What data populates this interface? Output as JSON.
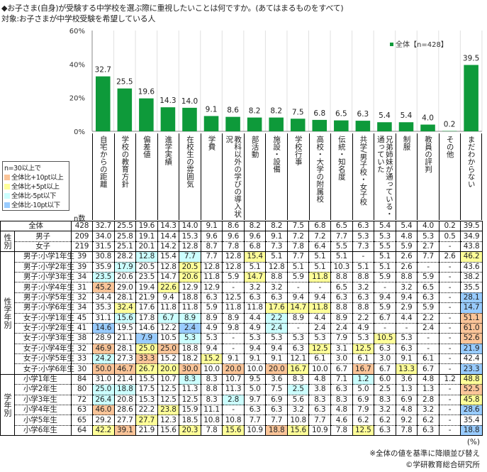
{
  "title": "◆お子さま(自身)が受験する中学校を選ぶ際に重視したいことは何ですか。(あてはまるものをすべて)",
  "subtitle": "対象:お子さまが中学校受験を希望している人",
  "colors": {
    "bar": "#0e9a3a",
    "plus10": "#fbc599",
    "plus5": "#ffff99",
    "minus5": "#ccffff",
    "minus10": "#99ccff"
  },
  "highlight_legend": {
    "title": "n=30以上で",
    "items": [
      {
        "code": "o",
        "label": "全体比+10pt以上"
      },
      {
        "code": "y",
        "label": "全体比+5pt以上"
      },
      {
        "code": "c",
        "label": "全体比-5pt以下"
      },
      {
        "code": "b",
        "label": "全体比-10pt以下"
      }
    ]
  },
  "n_label": "n数",
  "chart_data": {
    "type": "bar",
    "legend": "全体【n=428】",
    "legend_position": "top-right",
    "ylim": [
      0,
      60
    ],
    "yticks": [
      "0%",
      "20%",
      "40%",
      "60%"
    ],
    "categories": [
      "自宅からの距離",
      "学校の教育方針",
      "偏差値",
      "進学実績",
      "在校生の雰囲気",
      "学費",
      "教科以外の学びの導入状況",
      "部活動",
      "施設・設備",
      "学校行事",
      "高校・大学の附属校",
      "伝統・知名度",
      "共学/男子校・女子校",
      "兄弟姉妹が通っている・通っていた",
      "制服",
      "教員の評判",
      "その他",
      "まだわからない"
    ],
    "values": [
      32.7,
      25.5,
      19.6,
      14.3,
      14.0,
      9.1,
      8.6,
      8.2,
      8.2,
      7.5,
      6.8,
      6.5,
      6.3,
      5.4,
      5.4,
      4.0,
      0.2,
      39.5
    ],
    "value_labels": [
      "32.7",
      "25.5",
      "19.6",
      "14.3",
      "14.0",
      "9.1",
      "8.6",
      "8.2",
      "8.2",
      "7.5",
      "6.8",
      "6.5",
      "6.3",
      "5.4",
      "5.4",
      "4.0",
      "0.2",
      "39.5"
    ]
  },
  "table": {
    "groups": [
      {
        "label": "",
        "rows": [
          {
            "label": "全体",
            "n": "428",
            "v": [
              "32.7",
              "25.5",
              "19.6",
              "14.3",
              "14.0",
              "9.1",
              "8.6",
              "8.2",
              "8.2",
              "7.5",
              "6.8",
              "6.5",
              "6.3",
              "5.4",
              "5.4",
              "4.0",
              "0.2",
              "39.5"
            ],
            "h": ".................."
          }
        ]
      },
      {
        "label": "性別",
        "rows": [
          {
            "label": "男子",
            "n": "209",
            "v": [
              "34.0",
              "25.8",
              "19.1",
              "14.4",
              "15.3",
              "9.6",
              "9.6",
              "9.6",
              "9.1",
              "7.2",
              "7.2",
              "7.7",
              "5.3",
              "5.3",
              "4.8",
              "5.3",
              "0.5",
              "34.9"
            ],
            "h": ".................."
          },
          {
            "label": "女子",
            "n": "219",
            "v": [
              "31.5",
              "25.1",
              "20.1",
              "14.2",
              "12.8",
              "8.7",
              "7.8",
              "6.8",
              "7.3",
              "7.8",
              "6.4",
              "5.5",
              "7.3",
              "5.5",
              "5.9",
              "2.7",
              "-",
              "43.8"
            ],
            "h": ".................."
          }
        ]
      },
      {
        "label": "性学年別",
        "rows": [
          {
            "label": "男子:小学1年生",
            "n": "39",
            "v": [
              "30.8",
              "28.2",
              "12.8",
              "15.4",
              "7.7",
              "7.7",
              "12.8",
              "15.4",
              "5.1",
              "7.7",
              "5.1",
              "5.1",
              "-",
              "5.1",
              "2.6",
              "7.7",
              "2.6",
              "46.2"
            ],
            "h": "..c.c..y.........y"
          },
          {
            "label": "男子:小学2年生",
            "n": "39",
            "v": [
              "35.9",
              "17.9",
              "20.5",
              "12.8",
              "20.5",
              "12.8",
              "12.8",
              "5.1",
              "12.8",
              "5.1",
              "5.1",
              "10.3",
              "5.1",
              "5.1",
              "2.6",
              "-",
              "-",
              "43.6"
            ],
            "h": ".c..y............."
          },
          {
            "label": "男子:小学3年生",
            "n": "34",
            "v": [
              "23.5",
              "20.6",
              "23.5",
              "14.7",
              "20.6",
              "11.8",
              "5.9",
              "14.7",
              "8.8",
              "5.9",
              "11.8",
              "8.8",
              "8.8",
              "5.9",
              "8.8",
              "5.9",
              "-",
              "38.2"
            ],
            "h": "c...y..y..y......."
          },
          {
            "label": "男子:小学4年生",
            "n": "31",
            "v": [
              "45.2",
              "29.0",
              "19.4",
              "22.6",
              "12.9",
              "12.9",
              "-",
              "3.2",
              "3.2",
              "-",
              "-",
              "6.5",
              "3.2",
              "-",
              "3.2",
              "6.5",
              "-",
              "35.5"
            ],
            "h": "o..y.............."
          },
          {
            "label": "男子:小学5年生",
            "n": "32",
            "v": [
              "34.4",
              "28.1",
              "21.9",
              "9.4",
              "18.8",
              "6.3",
              "12.5",
              "6.3",
              "6.3",
              "9.4",
              "9.4",
              "6.3",
              "6.3",
              "9.4",
              "9.4",
              "6.3",
              "-",
              "28.1"
            ],
            "h": ".................b"
          },
          {
            "label": "男子:小学6年生",
            "n": "34",
            "v": [
              "35.3",
              "32.4",
              "17.6",
              "11.8",
              "11.8",
              "5.9",
              "11.8",
              "11.8",
              "17.6",
              "14.7",
              "11.8",
              "8.8",
              "8.8",
              "5.9",
              "2.9",
              "5.9",
              "-",
              "14.7"
            ],
            "h": ".y......yyy......b"
          },
          {
            "label": "女子:小学1年生",
            "n": "45",
            "v": [
              "31.1",
              "15.6",
              "17.8",
              "6.7",
              "8.9",
              "8.9",
              "8.9",
              "4.4",
              "2.2",
              "8.9",
              "4.4",
              "8.9",
              "2.2",
              "6.7",
              "4.4",
              "2.2",
              "-",
              "51.1"
            ],
            "h": ".c.cc...c........o"
          },
          {
            "label": "女子:小学2年生",
            "n": "41",
            "v": [
              "14.6",
              "19.5",
              "14.6",
              "12.2",
              "2.4",
              "4.9",
              "9.8",
              "4.9",
              "2.4",
              "-",
              "2.4",
              "2.4",
              "4.9",
              "-",
              "-",
              "2.4",
              "-",
              "61.0"
            ],
            "h": "b...b...c........o"
          },
          {
            "label": "女子:小学3年生",
            "n": "38",
            "v": [
              "28.9",
              "21.1",
              "7.9",
              "10.5",
              "5.3",
              "5.3",
              "-",
              "5.3",
              "5.3",
              "5.3",
              "5.3",
              "7.9",
              "5.3",
              "10.5",
              "5.3",
              "-",
              "-",
              "52.6"
            ],
            "h": "..b.c........y...o"
          },
          {
            "label": "女子:小学4年生",
            "n": "32",
            "v": [
              "46.9",
              "28.1",
              "25.0",
              "25.0",
              "18.8",
              "9.4",
              "-",
              "9.4",
              "9.4",
              "6.3",
              "12.5",
              "3.1",
              "12.5",
              "6.3",
              "6.3",
              "-",
              "-",
              "21.9"
            ],
            "h": "o.yo......y.y....b"
          },
          {
            "label": "女子:小学5年生",
            "n": "33",
            "v": [
              "24.2",
              "27.3",
              "33.3",
              "15.2",
              "18.2",
              "15.2",
              "9.1",
              "9.1",
              "9.1",
              "12.1",
              "6.1",
              "3.0",
              "6.1",
              "3.0",
              "9.1",
              "6.1",
              "-",
              "42.4"
            ],
            "h": "c.o..y............"
          },
          {
            "label": "女子:小学6年生",
            "n": "30",
            "v": [
              "50.0",
              "46.7",
              "26.7",
              "20.0",
              "30.0",
              "10.0",
              "20.0",
              "10.0",
              "20.0",
              "16.7",
              "10.0",
              "6.7",
              "16.7",
              "6.7",
              "13.3",
              "6.7",
              "-",
              "23.3"
            ],
            "h": "ooyyo.o.oy..o.y..b"
          }
        ]
      },
      {
        "label": "学年別",
        "rows": [
          {
            "label": "小学1年生",
            "n": "84",
            "v": [
              "31.0",
              "21.4",
              "15.5",
              "10.7",
              "8.3",
              "8.3",
              "10.7",
              "9.5",
              "3.6",
              "8.3",
              "4.8",
              "7.1",
              "1.2",
              "6.0",
              "3.6",
              "4.8",
              "1.2",
              "48.8"
            ],
            "h": "....c.......c....y"
          },
          {
            "label": "小学2年生",
            "n": "80",
            "v": [
              "25.0",
              "18.8",
              "17.5",
              "12.5",
              "11.3",
              "8.8",
              "11.3",
              "5.0",
              "7.5",
              "2.5",
              "3.8",
              "6.3",
              "5.0",
              "2.5",
              "1.3",
              "1.3",
              "-",
              "52.5"
            ],
            "h": "cc.......c.......o"
          },
          {
            "label": "小学3年生",
            "n": "72",
            "v": [
              "26.4",
              "20.8",
              "15.3",
              "12.5",
              "12.5",
              "8.3",
              "2.8",
              "9.7",
              "6.9",
              "5.6",
              "8.3",
              "8.3",
              "6.9",
              "8.3",
              "6.9",
              "2.8",
              "-",
              "45.8"
            ],
            "h": "c.....c..........y"
          },
          {
            "label": "小学4年生",
            "n": "63",
            "v": [
              "46.0",
              "28.6",
              "22.2",
              "23.8",
              "15.9",
              "11.1",
              "-",
              "6.3",
              "6.3",
              "3.2",
              "6.3",
              "4.8",
              "7.9",
              "3.2",
              "4.8",
              "3.2",
              "-",
              "28.6"
            ],
            "h": "o..y.............b"
          },
          {
            "label": "小学5年生",
            "n": "65",
            "v": [
              "29.2",
              "27.7",
              "27.7",
              "12.3",
              "18.5",
              "10.8",
              "10.8",
              "7.7",
              "7.7",
              "10.8",
              "7.7",
              "4.6",
              "6.2",
              "6.2",
              "9.2",
              "6.2",
              "-",
              "35.4"
            ],
            "h": "..y..............."
          },
          {
            "label": "小学6年生",
            "n": "64",
            "v": [
              "42.2",
              "39.1",
              "21.9",
              "15.6",
              "20.3",
              "7.8",
              "15.6",
              "10.9",
              "18.8",
              "15.6",
              "10.9",
              "7.8",
              "12.5",
              "6.3",
              "7.8",
              "6.3",
              "-",
              "18.8"
            ],
            "h": "yo..y.y.oy..y....b"
          }
        ]
      }
    ]
  },
  "footer": {
    "unit": "(%)",
    "note": "※全体の値を基準に降順並び替え",
    "copyright": "©学研教育総合研究所"
  }
}
